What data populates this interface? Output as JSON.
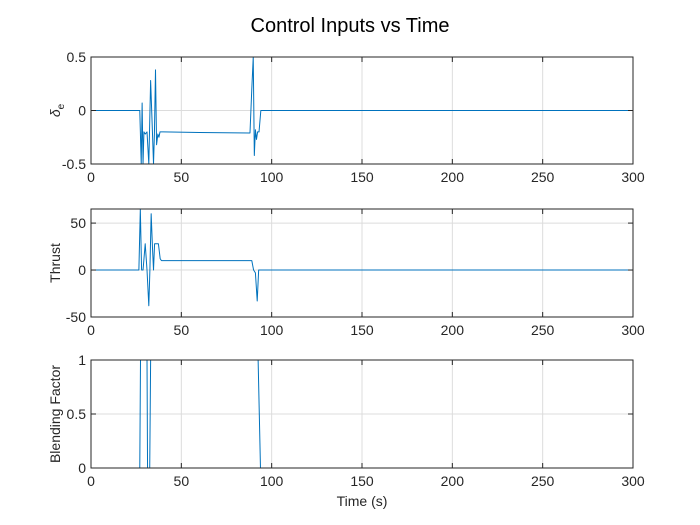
{
  "figure": {
    "title": "Control Inputs vs Time"
  },
  "chart_data": [
    {
      "type": "line",
      "ylabel_main": "δ",
      "ylabel_sub": "e",
      "xlabel": "",
      "xlim": [
        0,
        300
      ],
      "ylim": [
        -0.5,
        0.5
      ],
      "xticks": [
        0,
        50,
        100,
        150,
        200,
        250,
        300
      ],
      "yticks": [
        -0.5,
        0,
        0.5
      ],
      "ytick_labels": [
        "-0.5",
        "0",
        "0.5"
      ],
      "grid": true,
      "color": "#0072BD",
      "x": [
        0,
        27,
        27.8,
        28.3,
        28.8,
        29.3,
        30,
        31,
        32,
        33,
        34,
        34.6,
        35.1,
        35.7,
        36.3,
        37,
        37.6,
        38.2,
        39,
        40,
        60,
        88,
        89,
        89.8,
        90.4,
        91,
        91.6,
        92.2,
        93,
        94,
        96,
        100,
        300
      ],
      "y": [
        0,
        0,
        -0.5,
        0.07,
        -0.5,
        -0.2,
        -0.22,
        -0.2,
        -0.5,
        0.28,
        -0.2,
        -0.5,
        -0.22,
        0.38,
        -0.32,
        -0.22,
        -0.25,
        -0.2,
        -0.2,
        -0.2,
        -0.205,
        -0.21,
        0.2,
        0.5,
        -0.42,
        -0.18,
        -0.27,
        -0.2,
        -0.2,
        0,
        0,
        0,
        0
      ]
    },
    {
      "type": "line",
      "ylabel_main": "Thrust",
      "xlabel": "",
      "xlim": [
        0,
        300
      ],
      "ylim": [
        -50,
        65
      ],
      "xticks": [
        0,
        50,
        100,
        150,
        200,
        250,
        300
      ],
      "yticks": [
        -50,
        0,
        50
      ],
      "ytick_labels": [
        "-50",
        "0",
        "50"
      ],
      "grid": true,
      "color": "#0072BD",
      "x": [
        0,
        26.5,
        27.3,
        28,
        28.8,
        30,
        31,
        32,
        32.6,
        33.3,
        34,
        34.6,
        35.2,
        35.8,
        36.5,
        37.3,
        38.3,
        39,
        40,
        60,
        89,
        90,
        91,
        92,
        92.8,
        93.5,
        95,
        100,
        300
      ],
      "y": [
        0,
        0,
        65,
        0,
        0,
        28,
        0,
        -38,
        0,
        60,
        25,
        0,
        28,
        28,
        28,
        28,
        12,
        10,
        10,
        10,
        10,
        0,
        -3,
        -33,
        0,
        0,
        0,
        0,
        0
      ]
    },
    {
      "type": "line",
      "ylabel_main": "Blending Factor",
      "xlabel": "Time (s)",
      "xlim": [
        0,
        300
      ],
      "ylim": [
        0,
        1
      ],
      "xticks": [
        0,
        50,
        100,
        150,
        200,
        250,
        300
      ],
      "yticks": [
        0,
        0.5,
        1
      ],
      "ytick_labels": [
        "0",
        "0.5",
        "1"
      ],
      "grid": true,
      "color": "#0072BD",
      "x": [
        0,
        27,
        27.4,
        31,
        31.3,
        32.5,
        33,
        34,
        34.3,
        92.5,
        93.8,
        300
      ],
      "y": [
        0,
        0,
        1,
        1,
        0,
        0,
        1,
        1,
        1,
        1,
        0,
        0
      ]
    }
  ]
}
